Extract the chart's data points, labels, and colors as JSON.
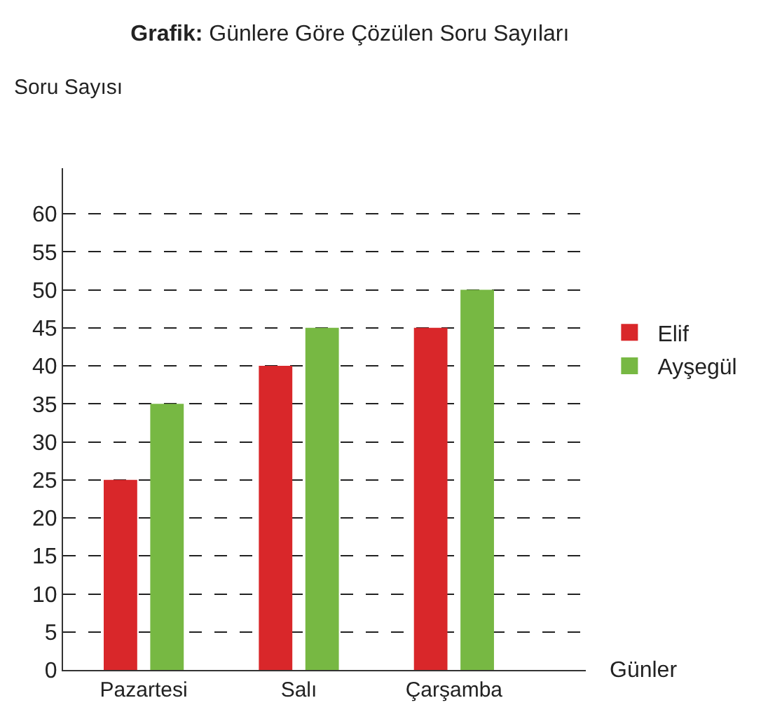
{
  "chart_data": {
    "type": "bar",
    "title": "Grafik: Günlere Göre Çözülen Soru Sayıları",
    "xlabel": "Günler",
    "ylabel": "Soru Sayısı",
    "categories": [
      "Pazartesi",
      "Salı",
      "Çarşamba"
    ],
    "series": [
      {
        "name": "Elif",
        "color": "#d9272a",
        "values": [
          25,
          40,
          45
        ]
      },
      {
        "name": "Ayşegül",
        "color": "#77b843",
        "values": [
          35,
          45,
          50
        ]
      }
    ],
    "ylim": [
      0,
      66
    ],
    "yticks": [
      0,
      5,
      10,
      15,
      20,
      25,
      30,
      35,
      40,
      45,
      50,
      55,
      60
    ],
    "grid": "y",
    "legend": "right"
  }
}
